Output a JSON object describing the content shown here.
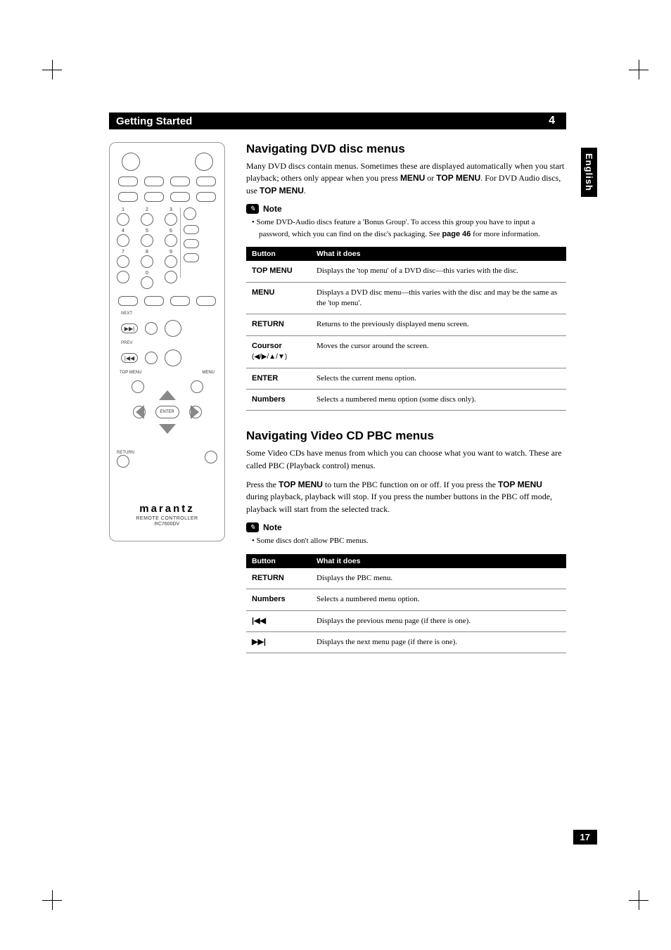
{
  "header": {
    "title": "Getting Started",
    "chapter": "4"
  },
  "lang_tab": "English",
  "page_number": "17",
  "remote": {
    "brand": "marantz",
    "brand_sub": "REMOTE CONTROLLER",
    "model": "RC7600DV",
    "labels": {
      "next": "NEXT",
      "prev": "PREV",
      "top_menu": "TOP MENU",
      "menu": "MENU",
      "enter": "ENTER",
      "return": "RETURN",
      "n1": "1",
      "n2": "2",
      "n3": "3",
      "n4": "4",
      "n5": "5",
      "n6": "6",
      "n7": "7",
      "n8": "8",
      "n9": "9",
      "n0": "0"
    },
    "icons": {
      "next": "▶▶|",
      "prev": "|◀◀"
    }
  },
  "section1": {
    "heading": "Navigating DVD disc menus",
    "para": "Many DVD discs contain menus. Sometimes these are displayed automatically when you start playback; others only appear when you press ",
    "para_b1": "MENU",
    "para_mid": " or ",
    "para_b2": "TOP MENU",
    "para_end": ". For DVD Audio discs, use ",
    "para_b3": "TOP MENU",
    "para_dot": ".",
    "note_label": "Note",
    "note_text_a": "Some DVD-Audio discs feature a 'Bonus Group'. To access this group you have to input a password, which you can find on the disc's packaging. See ",
    "note_bold": "page 46",
    "note_text_b": " for more information.",
    "table": {
      "col1": "Button",
      "col2": "What it does",
      "rows": [
        {
          "b": "TOP MENU",
          "d": "Displays the 'top menu' of a DVD disc—this varies with the disc."
        },
        {
          "b": "MENU",
          "d": "Displays a DVD disc menu—this varies with the disc and may be the same as the 'top menu'."
        },
        {
          "b": "RETURN",
          "d": "Returns to the previously displayed menu screen."
        },
        {
          "b": "Coursor",
          "sub": "(◀/▶/▲/▼)",
          "d": "Moves the cursor around the screen."
        },
        {
          "b": "ENTER",
          "d": "Selects the current menu option."
        },
        {
          "b": "Numbers",
          "d": "Selects a numbered menu option (some discs only)."
        }
      ]
    }
  },
  "section2": {
    "heading": "Navigating Video CD PBC menus",
    "para1": "Some Video CDs have menus from which you can choose what you want to watch. These are called PBC (Playback control) menus.",
    "para2_a": "Press the ",
    "para2_b1": "TOP MENU",
    "para2_b": " to turn the PBC function on or off. If you press the ",
    "para2_b2": "TOP MENU",
    "para2_c": " during playback, playback will stop. If you press the number buttons in the PBC off mode, playback will start from the selected track.",
    "note_label": "Note",
    "note_text": "Some discs don't allow PBC menus.",
    "table": {
      "col1": "Button",
      "col2": "What it does",
      "rows": [
        {
          "b": "RETURN",
          "d": "Displays the PBC menu."
        },
        {
          "b": "Numbers",
          "d": "Selects a numbered menu option."
        },
        {
          "b": "|◀◀",
          "d": "Displays the previous menu page (if there is one)."
        },
        {
          "b": "▶▶|",
          "d": "Displays the next menu page (if there is one)."
        }
      ]
    }
  }
}
